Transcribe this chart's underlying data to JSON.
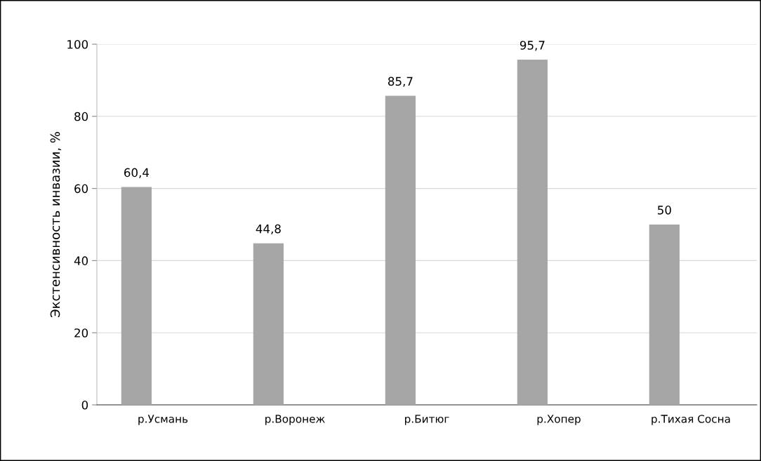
{
  "chart_data": {
    "type": "bar",
    "ylabel": "Экстенсивность инвазии, %",
    "categories": [
      "р.Усмань",
      "р.Воронеж",
      "р.Битюг",
      "р.Хопер",
      "р.Тихая Сосна"
    ],
    "values": [
      60.4,
      44.8,
      85.7,
      95.7,
      50
    ],
    "value_labels": [
      "60,4",
      "44,8",
      "85,7",
      "95,7",
      "50"
    ],
    "color": "#a6a6a6",
    "ylim": [
      0,
      100
    ],
    "yticks": [
      0,
      20,
      40,
      60,
      80,
      100
    ],
    "grid": "y"
  }
}
